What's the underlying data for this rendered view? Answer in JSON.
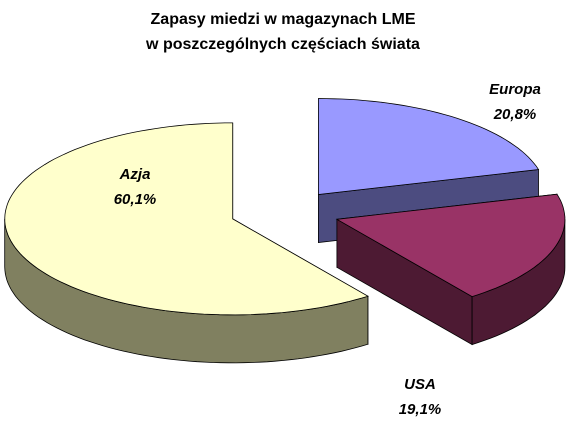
{
  "chart_data": {
    "type": "pie3d",
    "title": [
      "Zapasy miedzi w magazynach LME",
      "w poszczególnych częściach świata"
    ],
    "categories": [
      "Europa",
      "USA",
      "Azja"
    ],
    "values": [
      20.8,
      19.1,
      60.1
    ],
    "value_labels": [
      "20,8%",
      "19,1%",
      "60,1%"
    ],
    "colors": [
      "#9999ff",
      "#993366",
      "#ffffcc"
    ],
    "side_colors": [
      "#4c4c80",
      "#4d1a33",
      "#808060"
    ]
  }
}
